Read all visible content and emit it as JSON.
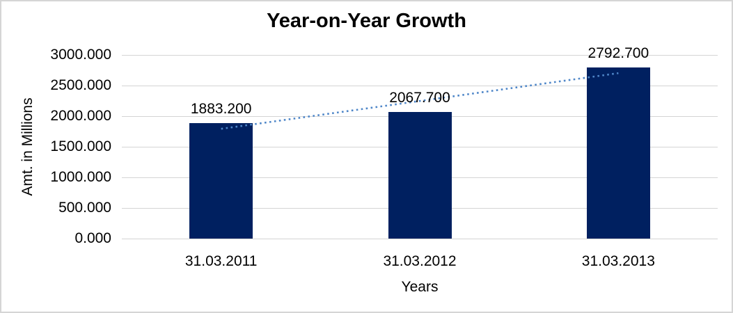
{
  "chart_data": {
    "type": "bar",
    "title": "Year-on-Year Growth",
    "xlabel": "Years",
    "ylabel": "Amt. in Millions",
    "categories": [
      "31.03.2011",
      "31.03.2012",
      "31.03.2013"
    ],
    "values": [
      1883.2,
      2067.7,
      2792.7
    ],
    "value_labels": [
      "1883.200",
      "2067.700",
      "2792.700"
    ],
    "ylim": [
      0,
      3000
    ],
    "ytick_step": 500,
    "ytick_labels": [
      "0.000",
      "500.000",
      "1000.000",
      "1500.000",
      "2000.000",
      "2500.000",
      "3000.000"
    ],
    "grid": true,
    "legend": "none",
    "bar_color": "#002060",
    "gridline_color": "#d4d4d4",
    "trendline": {
      "type": "linear",
      "style": "dotted",
      "color": "#4e86c8"
    }
  }
}
